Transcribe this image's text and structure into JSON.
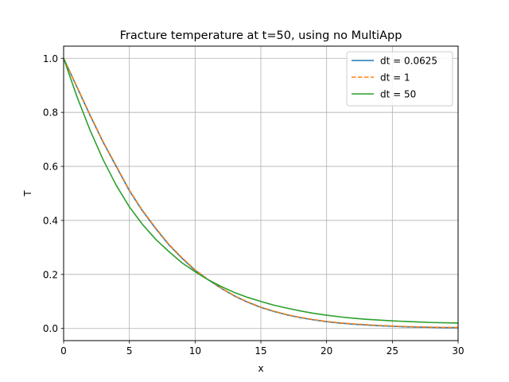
{
  "chart_data": {
    "type": "line",
    "title": "Fracture temperature at t=50, using no MultiApp",
    "xlabel": "x",
    "ylabel": "T",
    "xlim": [
      0,
      30
    ],
    "ylim": [
      -0.045,
      1.045
    ],
    "xticks": [
      0,
      5,
      10,
      15,
      20,
      25,
      30
    ],
    "yticks": [
      0.0,
      0.2,
      0.4,
      0.6,
      0.8,
      1.0
    ],
    "ytick_labels": [
      "0.0",
      "0.2",
      "0.4",
      "0.6",
      "0.8",
      "1.0"
    ],
    "grid": true,
    "legend_position": "top-right",
    "x": [
      0,
      1,
      2,
      3,
      4,
      5,
      6,
      7,
      8,
      9,
      10,
      11,
      12,
      13,
      14,
      15,
      16,
      17,
      18,
      19,
      20,
      21,
      22,
      23,
      24,
      25,
      26,
      27,
      28,
      29,
      30
    ],
    "series": [
      {
        "name": "dt = 0.0625",
        "color": "#1f77b4",
        "dash": "solid",
        "values": [
          1.0,
          0.895,
          0.79,
          0.69,
          0.6,
          0.51,
          0.435,
          0.37,
          0.31,
          0.26,
          0.215,
          0.18,
          0.148,
          0.12,
          0.097,
          0.078,
          0.063,
          0.05,
          0.04,
          0.032,
          0.025,
          0.02,
          0.016,
          0.013,
          0.01,
          0.008,
          0.006,
          0.005,
          0.004,
          0.003,
          0.003
        ]
      },
      {
        "name": "dt = 1",
        "color": "#ff7f0e",
        "dash": "dashed",
        "values": [
          1.0,
          0.897,
          0.792,
          0.692,
          0.602,
          0.512,
          0.437,
          0.372,
          0.312,
          0.262,
          0.217,
          0.181,
          0.149,
          0.121,
          0.098,
          0.079,
          0.064,
          0.051,
          0.041,
          0.033,
          0.026,
          0.021,
          0.017,
          0.014,
          0.011,
          0.009,
          0.007,
          0.006,
          0.005,
          0.004,
          0.004
        ]
      },
      {
        "name": "dt = 50",
        "color": "#2ca02c",
        "dash": "solid",
        "values": [
          1.0,
          0.86,
          0.735,
          0.625,
          0.53,
          0.45,
          0.385,
          0.33,
          0.285,
          0.243,
          0.21,
          0.18,
          0.155,
          0.133,
          0.115,
          0.1,
          0.086,
          0.075,
          0.065,
          0.056,
          0.049,
          0.043,
          0.038,
          0.034,
          0.031,
          0.028,
          0.026,
          0.024,
          0.022,
          0.021,
          0.02
        ]
      }
    ]
  }
}
